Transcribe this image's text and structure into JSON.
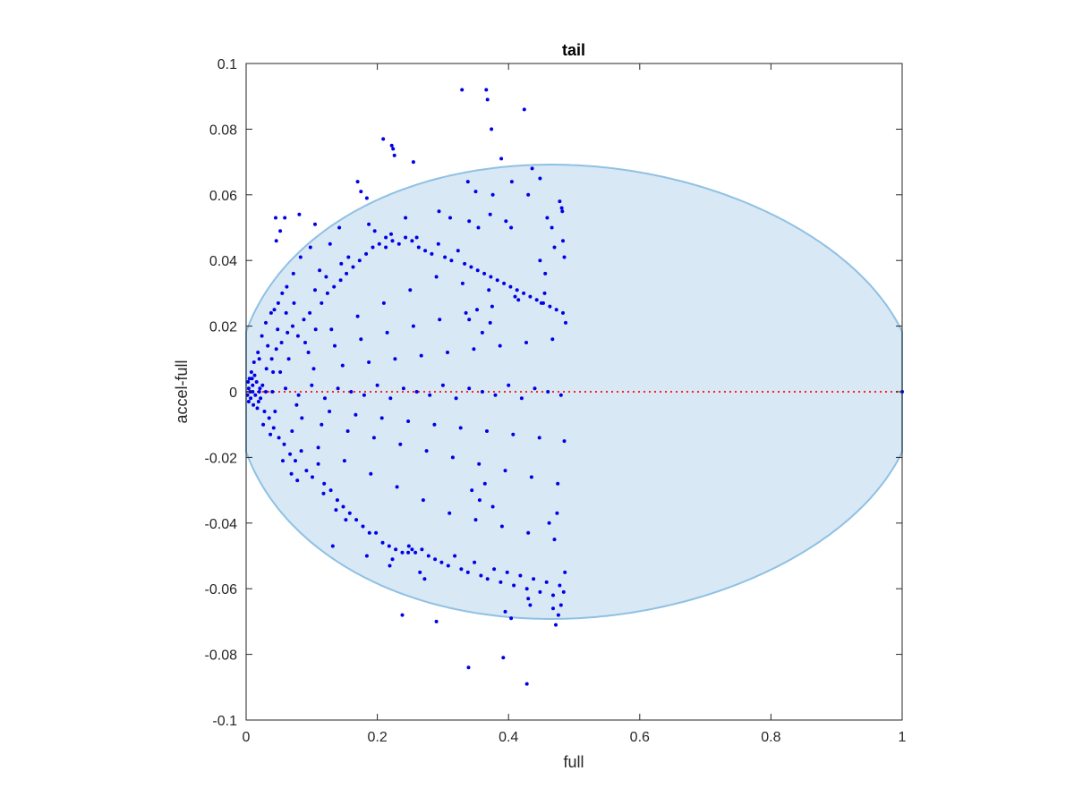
{
  "chart_data": {
    "type": "scatter",
    "title": "tail",
    "xlabel": "full",
    "ylabel": "accel-full",
    "xlim": [
      0,
      1
    ],
    "ylim": [
      -0.1,
      0.1
    ],
    "x_ticks": [
      0,
      0.2,
      0.4,
      0.6,
      0.8,
      1
    ],
    "x_tick_labels": [
      "0",
      "0.2",
      "0.4",
      "0.6",
      "0.8",
      "1"
    ],
    "y_ticks": [
      -0.1,
      -0.08,
      -0.06,
      -0.04,
      -0.02,
      0,
      0.02,
      0.04,
      0.06,
      0.08,
      0.1
    ],
    "y_tick_labels": [
      "-0.1",
      "-0.08",
      "-0.06",
      "-0.04",
      "-0.02",
      "0",
      "0.02",
      "0.04",
      "0.06",
      "0.08",
      "0.1"
    ],
    "grid": false,
    "box": true,
    "ellipse_region": {
      "x_range": [
        0,
        1
      ],
      "center_x": 0.5,
      "semi_height": 0.0692,
      "peak_shift": 0.07,
      "fill_color": "#d8e8f4",
      "edge_color": "#8fc1e3"
    },
    "reference_line": {
      "y": 0,
      "x_range": [
        0,
        1
      ],
      "color": "#ff2020",
      "style": "dotted"
    },
    "marker_color": "#0000e6",
    "points": [
      [
        0.329,
        0.092
      ],
      [
        0.366,
        0.092
      ],
      [
        0.368,
        0.089
      ],
      [
        0.424,
        0.086
      ],
      [
        0.374,
        0.08
      ],
      [
        0.389,
        0.071
      ],
      [
        0.209,
        0.077
      ],
      [
        0.222,
        0.075
      ],
      [
        0.224,
        0.074
      ],
      [
        0.226,
        0.072
      ],
      [
        0.255,
        0.07
      ],
      [
        0.17,
        0.064
      ],
      [
        0.175,
        0.061
      ],
      [
        0.184,
        0.059
      ],
      [
        0.436,
        0.068
      ],
      [
        0.405,
        0.064
      ],
      [
        0.448,
        0.065
      ],
      [
        0.045,
        0.053
      ],
      [
        0.059,
        0.053
      ],
      [
        0.081,
        0.054
      ],
      [
        0.105,
        0.051
      ],
      [
        0.046,
        0.046
      ],
      [
        0.052,
        0.049
      ],
      [
        0.338,
        0.064
      ],
      [
        0.35,
        0.061
      ],
      [
        0.376,
        0.06
      ],
      [
        0.43,
        0.06
      ],
      [
        0.481,
        0.056
      ],
      [
        0.478,
        0.058
      ],
      [
        0.482,
        0.055
      ],
      [
        0.483,
        0.046
      ],
      [
        0.485,
        0.041
      ],
      [
        0.459,
        0.053
      ],
      [
        0.466,
        0.05
      ],
      [
        0.47,
        0.044
      ],
      [
        0.396,
        0.052
      ],
      [
        0.404,
        0.05
      ],
      [
        0.372,
        0.054
      ],
      [
        0.34,
        0.052
      ],
      [
        0.354,
        0.05
      ],
      [
        0.311,
        0.053
      ],
      [
        0.294,
        0.055
      ],
      [
        0.26,
        0.047
      ],
      [
        0.243,
        0.053
      ],
      [
        0.221,
        0.048
      ],
      [
        0.213,
        0.047
      ],
      [
        0.196,
        0.049
      ],
      [
        0.187,
        0.051
      ],
      [
        0.156,
        0.041
      ],
      [
        0.142,
        0.05
      ],
      [
        0.128,
        0.045
      ],
      [
        0.112,
        0.037
      ],
      [
        0.098,
        0.044
      ],
      [
        0.083,
        0.041
      ],
      [
        0.072,
        0.036
      ],
      [
        0.062,
        0.032
      ],
      [
        0.055,
        0.03
      ],
      [
        0.049,
        0.027
      ],
      [
        0.043,
        0.025
      ],
      [
        0.038,
        0.024
      ],
      [
        0.03,
        0.021
      ],
      [
        0.024,
        0.017
      ],
      [
        0.018,
        0.012
      ],
      [
        0.012,
        0.009
      ],
      [
        0.008,
        0.006
      ],
      [
        0.005,
        0.004
      ],
      [
        0.003,
        0.003
      ],
      [
        0.004,
        0.001
      ],
      [
        0.006,
        0.0
      ],
      [
        0.002,
        -0.001
      ],
      [
        0.007,
        -0.002
      ],
      [
        0.01,
        0.002
      ],
      [
        0.014,
        -0.001
      ],
      [
        0.016,
        0.003
      ],
      [
        0.019,
        -0.003
      ],
      [
        0.021,
        0.001
      ],
      [
        0.011,
        -0.004
      ],
      [
        0.004,
        -0.003
      ],
      [
        0.009,
        0.004
      ],
      [
        0.013,
        0.005
      ],
      [
        0.017,
        -0.005
      ],
      [
        0.022,
        -0.002
      ],
      [
        0.025,
        0.002
      ],
      [
        0.028,
        -0.006
      ],
      [
        0.031,
        0.007
      ],
      [
        0.035,
        -0.008
      ],
      [
        0.039,
        0.01
      ],
      [
        0.042,
        -0.011
      ],
      [
        0.046,
        0.013
      ],
      [
        0.05,
        -0.014
      ],
      [
        0.054,
        0.015
      ],
      [
        0.058,
        -0.016
      ],
      [
        0.063,
        0.018
      ],
      [
        0.067,
        -0.019
      ],
      [
        0.071,
        0.02
      ],
      [
        0.075,
        -0.021
      ],
      [
        0.079,
        0.017
      ],
      [
        0.084,
        -0.018
      ],
      [
        0.088,
        0.022
      ],
      [
        0.092,
        -0.024
      ],
      [
        0.097,
        0.024
      ],
      [
        0.101,
        -0.026
      ],
      [
        0.106,
        0.019
      ],
      [
        0.11,
        -0.022
      ],
      [
        0.115,
        0.027
      ],
      [
        0.119,
        -0.028
      ],
      [
        0.124,
        0.03
      ],
      [
        0.129,
        -0.03
      ],
      [
        0.134,
        0.032
      ],
      [
        0.139,
        -0.033
      ],
      [
        0.144,
        0.034
      ],
      [
        0.148,
        -0.035
      ],
      [
        0.153,
        0.036
      ],
      [
        0.158,
        -0.037
      ],
      [
        0.163,
        0.038
      ],
      [
        0.168,
        -0.039
      ],
      [
        0.173,
        0.04
      ],
      [
        0.178,
        -0.041
      ],
      [
        0.183,
        0.042
      ],
      [
        0.188,
        -0.043
      ],
      [
        0.193,
        0.044
      ],
      [
        0.198,
        -0.043
      ],
      [
        0.203,
        0.045
      ],
      [
        0.208,
        -0.046
      ],
      [
        0.213,
        0.044
      ],
      [
        0.218,
        -0.047
      ],
      [
        0.223,
        0.046
      ],
      [
        0.228,
        -0.048
      ],
      [
        0.233,
        0.045
      ],
      [
        0.238,
        -0.049
      ],
      [
        0.243,
        0.047
      ],
      [
        0.248,
        -0.047
      ],
      [
        0.253,
        0.046
      ],
      [
        0.258,
        -0.049
      ],
      [
        0.263,
        0.044
      ],
      [
        0.268,
        -0.048
      ],
      [
        0.273,
        0.043
      ],
      [
        0.278,
        -0.05
      ],
      [
        0.283,
        0.042
      ],
      [
        0.288,
        -0.051
      ],
      [
        0.293,
        0.045
      ],
      [
        0.298,
        -0.052
      ],
      [
        0.303,
        0.041
      ],
      [
        0.308,
        -0.053
      ],
      [
        0.313,
        0.04
      ],
      [
        0.318,
        -0.05
      ],
      [
        0.323,
        0.043
      ],
      [
        0.328,
        -0.054
      ],
      [
        0.333,
        0.039
      ],
      [
        0.338,
        -0.055
      ],
      [
        0.343,
        0.038
      ],
      [
        0.348,
        -0.052
      ],
      [
        0.353,
        0.037
      ],
      [
        0.358,
        -0.056
      ],
      [
        0.363,
        0.036
      ],
      [
        0.368,
        -0.057
      ],
      [
        0.373,
        0.035
      ],
      [
        0.378,
        -0.054
      ],
      [
        0.383,
        0.034
      ],
      [
        0.388,
        -0.058
      ],
      [
        0.393,
        0.033
      ],
      [
        0.398,
        -0.055
      ],
      [
        0.403,
        0.032
      ],
      [
        0.408,
        -0.059
      ],
      [
        0.413,
        0.031
      ],
      [
        0.418,
        -0.056
      ],
      [
        0.423,
        0.03
      ],
      [
        0.428,
        -0.06
      ],
      [
        0.433,
        0.029
      ],
      [
        0.438,
        -0.057
      ],
      [
        0.443,
        0.028
      ],
      [
        0.448,
        -0.061
      ],
      [
        0.453,
        0.027
      ],
      [
        0.458,
        -0.058
      ],
      [
        0.463,
        0.026
      ],
      [
        0.468,
        -0.062
      ],
      [
        0.473,
        0.025
      ],
      [
        0.478,
        -0.059
      ],
      [
        0.483,
        0.024
      ],
      [
        0.486,
        -0.055
      ],
      [
        0.484,
        -0.061
      ],
      [
        0.48,
        -0.065
      ],
      [
        0.476,
        -0.068
      ],
      [
        0.472,
        -0.071
      ],
      [
        0.468,
        -0.066
      ],
      [
        0.43,
        -0.063
      ],
      [
        0.433,
        -0.065
      ],
      [
        0.395,
        -0.067
      ],
      [
        0.404,
        -0.069
      ],
      [
        0.392,
        -0.081
      ],
      [
        0.339,
        -0.084
      ],
      [
        0.428,
        -0.089
      ],
      [
        0.29,
        -0.07
      ],
      [
        0.238,
        -0.068
      ],
      [
        0.184,
        -0.05
      ],
      [
        0.132,
        -0.047
      ],
      [
        0.272,
        -0.057
      ],
      [
        0.265,
        -0.055
      ],
      [
        0.247,
        -0.049
      ],
      [
        0.253,
        -0.048
      ],
      [
        0.219,
        -0.053
      ],
      [
        0.223,
        -0.051
      ],
      [
        0.01,
        0.0
      ],
      [
        0.02,
        0.0
      ],
      [
        0.03,
        0.0
      ],
      [
        0.04,
        0.0
      ],
      [
        0.06,
        0.001
      ],
      [
        0.08,
        -0.001
      ],
      [
        0.1,
        0.002
      ],
      [
        0.12,
        -0.002
      ],
      [
        0.14,
        0.001
      ],
      [
        0.16,
        0.0
      ],
      [
        0.18,
        -0.001
      ],
      [
        0.2,
        0.002
      ],
      [
        0.22,
        -0.002
      ],
      [
        0.24,
        0.001
      ],
      [
        0.26,
        0.0
      ],
      [
        0.28,
        -0.001
      ],
      [
        0.3,
        0.002
      ],
      [
        0.32,
        -0.002
      ],
      [
        0.34,
        0.001
      ],
      [
        0.36,
        0.0
      ],
      [
        0.38,
        -0.001
      ],
      [
        0.4,
        0.002
      ],
      [
        0.42,
        -0.002
      ],
      [
        0.44,
        0.001
      ],
      [
        0.46,
        0.0
      ],
      [
        0.48,
        -0.001
      ],
      [
        1.0,
        0.0
      ],
      [
        0.065,
        0.01
      ],
      [
        0.085,
        -0.008
      ],
      [
        0.095,
        0.012
      ],
      [
        0.115,
        -0.01
      ],
      [
        0.135,
        0.014
      ],
      [
        0.155,
        -0.012
      ],
      [
        0.175,
        0.016
      ],
      [
        0.195,
        -0.014
      ],
      [
        0.215,
        0.018
      ],
      [
        0.235,
        -0.016
      ],
      [
        0.255,
        0.02
      ],
      [
        0.275,
        -0.018
      ],
      [
        0.295,
        0.022
      ],
      [
        0.315,
        -0.02
      ],
      [
        0.335,
        0.024
      ],
      [
        0.355,
        -0.022
      ],
      [
        0.375,
        0.026
      ],
      [
        0.395,
        -0.024
      ],
      [
        0.415,
        0.028
      ],
      [
        0.435,
        -0.026
      ],
      [
        0.455,
        0.03
      ],
      [
        0.475,
        -0.028
      ],
      [
        0.07,
        -0.012
      ],
      [
        0.09,
        0.015
      ],
      [
        0.11,
        -0.017
      ],
      [
        0.13,
        0.019
      ],
      [
        0.15,
        -0.021
      ],
      [
        0.17,
        0.023
      ],
      [
        0.19,
        -0.025
      ],
      [
        0.21,
        0.027
      ],
      [
        0.23,
        -0.029
      ],
      [
        0.25,
        0.031
      ],
      [
        0.27,
        -0.033
      ],
      [
        0.29,
        0.035
      ],
      [
        0.31,
        -0.037
      ],
      [
        0.33,
        0.033
      ],
      [
        0.35,
        -0.039
      ],
      [
        0.37,
        0.031
      ],
      [
        0.39,
        -0.041
      ],
      [
        0.41,
        0.029
      ],
      [
        0.43,
        -0.043
      ],
      [
        0.45,
        0.027
      ],
      [
        0.47,
        -0.045
      ],
      [
        0.487,
        0.021
      ],
      [
        0.052,
        0.006
      ],
      [
        0.077,
        -0.004
      ],
      [
        0.103,
        0.007
      ],
      [
        0.127,
        -0.006
      ],
      [
        0.147,
        0.008
      ],
      [
        0.167,
        -0.007
      ],
      [
        0.187,
        0.009
      ],
      [
        0.207,
        -0.008
      ],
      [
        0.227,
        0.01
      ],
      [
        0.247,
        -0.009
      ],
      [
        0.267,
        0.011
      ],
      [
        0.287,
        -0.01
      ],
      [
        0.307,
        0.012
      ],
      [
        0.327,
        -0.011
      ],
      [
        0.347,
        0.013
      ],
      [
        0.367,
        -0.012
      ],
      [
        0.387,
        0.014
      ],
      [
        0.407,
        -0.013
      ],
      [
        0.427,
        0.015
      ],
      [
        0.447,
        -0.014
      ],
      [
        0.467,
        0.016
      ],
      [
        0.485,
        -0.015
      ],
      [
        0.34,
        0.022
      ],
      [
        0.352,
        0.025
      ],
      [
        0.36,
        0.018
      ],
      [
        0.372,
        0.021
      ],
      [
        0.344,
        -0.03
      ],
      [
        0.356,
        -0.033
      ],
      [
        0.364,
        -0.028
      ],
      [
        0.376,
        -0.035
      ],
      [
        0.448,
        0.04
      ],
      [
        0.456,
        0.036
      ],
      [
        0.462,
        -0.04
      ],
      [
        0.474,
        -0.037
      ],
      [
        0.02,
        0.01
      ],
      [
        0.026,
        -0.01
      ],
      [
        0.033,
        0.014
      ],
      [
        0.037,
        -0.013
      ],
      [
        0.041,
        0.006
      ],
      [
        0.044,
        -0.006
      ],
      [
        0.048,
        0.019
      ],
      [
        0.056,
        -0.021
      ],
      [
        0.061,
        0.024
      ],
      [
        0.069,
        -0.025
      ],
      [
        0.073,
        0.027
      ],
      [
        0.078,
        -0.027
      ],
      [
        0.105,
        0.031
      ],
      [
        0.118,
        -0.031
      ],
      [
        0.122,
        0.035
      ],
      [
        0.137,
        -0.036
      ],
      [
        0.145,
        0.039
      ],
      [
        0.152,
        -0.039
      ]
    ]
  }
}
